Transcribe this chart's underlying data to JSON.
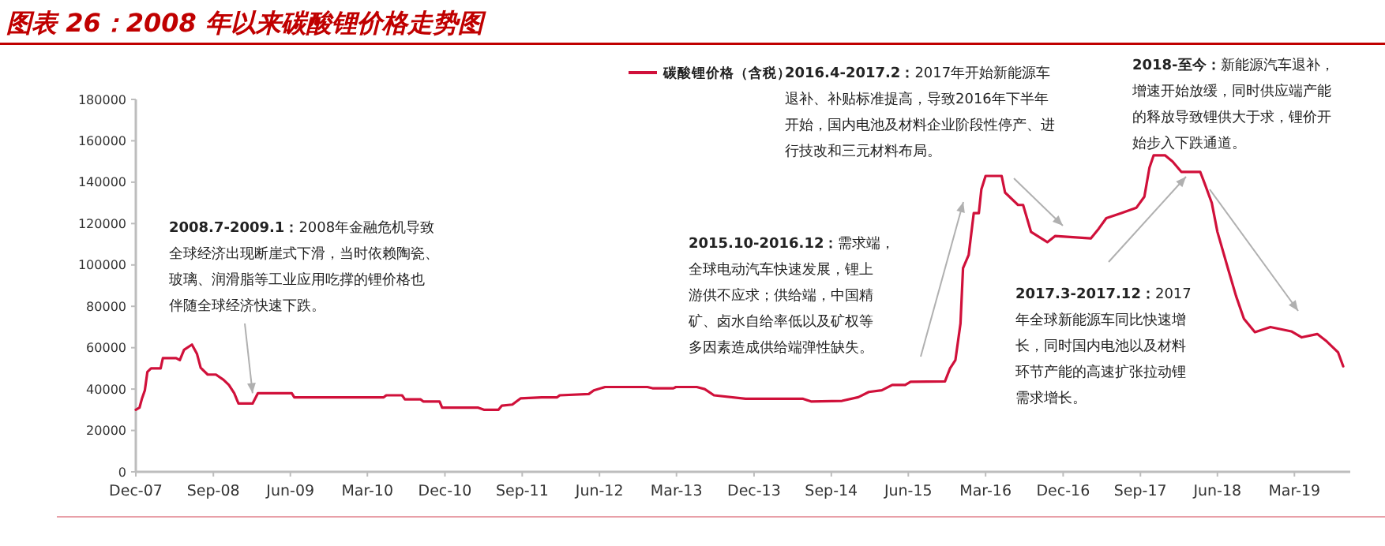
{
  "chart_data": {
    "type": "line",
    "title": "图表 26：2008 年以来碳酸锂价格走势图",
    "x": [
      "2007-12-01",
      "2007-12-14",
      "2007-12-23",
      "2008-01-02",
      "2008-01-11",
      "2008-01-24",
      "2008-02-27",
      "2008-03-06",
      "2008-04-22",
      "2008-05-05",
      "2008-05-20",
      "2008-06-17",
      "2008-07-05",
      "2008-07-18",
      "2008-08-12",
      "2008-09-10",
      "2008-10-07",
      "2008-10-26",
      "2008-11-14",
      "2008-11-29",
      "2009-01-18",
      "2009-02-06",
      "2009-06-06",
      "2009-06-15",
      "2010-04-28",
      "2010-05-07",
      "2010-07-02",
      "2010-07-12",
      "2010-09-06",
      "2010-09-15",
      "2010-11-12",
      "2010-11-21",
      "2011-03-29",
      "2011-04-18",
      "2011-06-09",
      "2011-06-21",
      "2011-07-28",
      "2011-08-26",
      "2011-11-09",
      "2012-01-03",
      "2012-01-12",
      "2012-04-24",
      "2012-05-12",
      "2012-06-21",
      "2012-11-18",
      "2012-12-06",
      "2013-02-18",
      "2013-02-27",
      "2013-05-12",
      "2013-06-09",
      "2013-07-12",
      "2013-11-01",
      "2014-05-24",
      "2014-06-21",
      "2014-10-09",
      "2014-12-06",
      "2015-01-12",
      "2015-02-27",
      "2015-04-05",
      "2015-05-21",
      "2015-06-09",
      "2015-10-09",
      "2015-10-27",
      "2015-11-15",
      "2015-12-03",
      "2015-12-12",
      "2016-01-01",
      "2016-01-19",
      "2016-02-06",
      "2016-02-15",
      "2016-03-01",
      "2016-04-27",
      "2016-05-09",
      "2016-06-24",
      "2016-07-12",
      "2016-08-09",
      "2016-10-06",
      "2016-11-03",
      "2017-03-09",
      "2017-04-06",
      "2017-05-03",
      "2017-06-24",
      "2017-08-18",
      "2017-09-15",
      "2017-10-03",
      "2017-10-18",
      "2017-11-27",
      "2017-12-24",
      "2018-01-24",
      "2018-04-01",
      "2018-04-15",
      "2018-05-12",
      "2018-06-01",
      "2018-07-09",
      "2018-08-06",
      "2018-09-03",
      "2018-10-12",
      "2018-12-06",
      "2019-02-18",
      "2019-03-27",
      "2019-05-21",
      "2019-06-24",
      "2019-08-03",
      "2019-08-21"
    ],
    "series": [
      {
        "name": "碳酸锂价格（含税）",
        "color": "#d0103a",
        "values": [
          30000,
          31000,
          35500,
          39400,
          48300,
          50000,
          50000,
          55000,
          55000,
          54000,
          59000,
          61500,
          57000,
          50300,
          47000,
          47000,
          44500,
          42000,
          38000,
          33000,
          33000,
          38000,
          38000,
          36000,
          36000,
          37000,
          37000,
          35000,
          35000,
          34000,
          34000,
          31000,
          31000,
          30000,
          30000,
          32000,
          32500,
          35500,
          36000,
          36000,
          37000,
          37600,
          39400,
          41000,
          41000,
          40400,
          40400,
          41000,
          41000,
          40000,
          37000,
          35300,
          35300,
          34000,
          34300,
          36100,
          38600,
          39400,
          42000,
          42000,
          43500,
          43700,
          50000,
          54000,
          71700,
          98400,
          104800,
          125000,
          125000,
          136500,
          143000,
          143000,
          135000,
          129000,
          129000,
          116000,
          111000,
          114000,
          112800,
          117500,
          122600,
          125000,
          127700,
          133000,
          147000,
          153000,
          153000,
          150000,
          145000,
          145000,
          140000,
          130000,
          116000,
          98000,
          85000,
          74000,
          67500,
          70000,
          67900,
          65000,
          66600,
          63000,
          57700,
          51000
        ]
      }
    ],
    "xlim": [
      "2007-12-01",
      "2019-09-15"
    ],
    "xticks": [
      {
        "value": "2007-12-01",
        "label": "Dec-07"
      },
      {
        "value": "2008-09-01",
        "label": "Sep-08"
      },
      {
        "value": "2009-06-01",
        "label": "Jun-09"
      },
      {
        "value": "2010-03-01",
        "label": "Mar-10"
      },
      {
        "value": "2010-12-01",
        "label": "Dec-10"
      },
      {
        "value": "2011-09-01",
        "label": "Sep-11"
      },
      {
        "value": "2012-06-01",
        "label": "Jun-12"
      },
      {
        "value": "2013-03-01",
        "label": "Mar-13"
      },
      {
        "value": "2013-12-01",
        "label": "Dec-13"
      },
      {
        "value": "2014-09-01",
        "label": "Sep-14"
      },
      {
        "value": "2015-06-01",
        "label": "Jun-15"
      },
      {
        "value": "2016-03-01",
        "label": "Mar-16"
      },
      {
        "value": "2016-12-01",
        "label": "Dec-16"
      },
      {
        "value": "2017-09-01",
        "label": "Sep-17"
      },
      {
        "value": "2018-06-01",
        "label": "Jun-18"
      },
      {
        "value": "2019-03-01",
        "label": "Mar-19"
      }
    ],
    "ylim": [
      0,
      180000
    ],
    "yticks": [
      0,
      20000,
      40000,
      60000,
      80000,
      100000,
      120000,
      140000,
      160000,
      180000
    ],
    "grid": false,
    "legend": "top",
    "marker": "none",
    "line_style": "solid",
    "annotations": [
      {
        "text": "2008.7-2009.1：2008年金融危机导致全球经济出现断崖式下滑，当时依赖陶瓷、玻璃、润滑脂等工业应用吃撑的锂价格也伴随全球经济快速下跌。",
        "x": "2009-01-18",
        "y": 38000
      },
      "2015.10-2016.12：需求端，全球电动汽车快速发展，锂上游供不应求；供给端，中国精矿、卤水自给率低以及矿权等多因素造成供给端弹性缺失。",
      "2016.4-2017.2：2017年开始新能源车退补、补贴标准提高，导致2016年下半年开始，国内电池及材料企业阶段性停产、进行技改和三元材料布局。",
      "2017.3-2017.12：2017年全球新能源车同比快速增长，同时国内电池以及材料环节产能的高速扩张拉动锂需求增长。",
      "2018-至今：新能源汽车退补，增速开始放缓，同时供应端产能的释放导致锂供大于求，锂价开始步入下跌通道。"
    ]
  }
}
